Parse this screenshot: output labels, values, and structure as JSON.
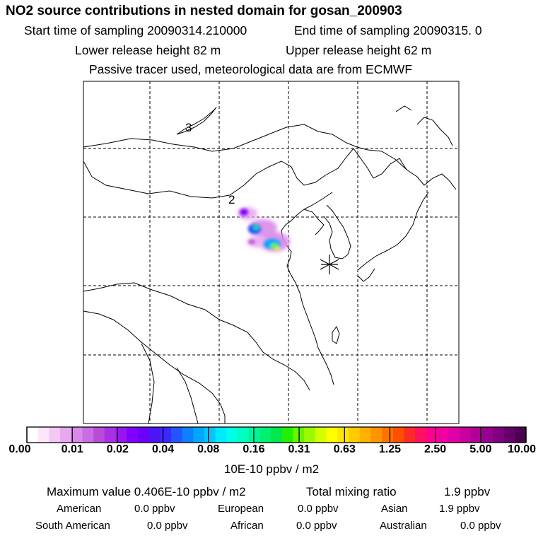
{
  "header": {
    "title": "NO2 source contributions in nested domain for gosan_200903",
    "start_label": "Start time of sampling 20090314.210000",
    "end_label": "End time of sampling 20090315.     0",
    "lower_label": "Lower release height   82 m",
    "upper_label": "Upper release height   62 m",
    "note": "Passive tracer used, meteorological data are from ECMWF"
  },
  "map": {
    "region_labels": [
      "3",
      "2"
    ],
    "receptor_marker": "asterisk"
  },
  "colorbar": {
    "labels": [
      "0.00",
      "0.01",
      "0.02",
      "0.04",
      "0.08",
      "0.16",
      "0.31",
      "0.63",
      "1.25",
      "2.50",
      "5.00",
      "10.00"
    ],
    "unit": "10E-10 ppbv / m2",
    "colors": [
      "#ffffff",
      "#fbe6fb",
      "#f2c8f4",
      "#e8a8ef",
      "#d98ae8",
      "#c86ee0",
      "#b84cd8",
      "#a92ee6",
      "#9815f0",
      "#8000ff",
      "#6a00f8",
      "#4e14f2",
      "#3a28ff",
      "#2255ff",
      "#0c80ff",
      "#00a6ff",
      "#00c8ff",
      "#00eaff",
      "#00ffe6",
      "#00ffc0",
      "#00f598",
      "#00f070",
      "#00e84c",
      "#22f000",
      "#66f500",
      "#9cfa00",
      "#d4ff00",
      "#ffff00",
      "#ffe600",
      "#ffcc00",
      "#ffb000",
      "#ff9400",
      "#ff7400",
      "#ff5000",
      "#ff2a2a",
      "#ff1060",
      "#ff0090",
      "#f000a0",
      "#e000a8",
      "#c800a0",
      "#b00098",
      "#980090",
      "#800080",
      "#660068",
      "#4c0050"
    ]
  },
  "stats": {
    "max_label": "Maximum value  0.406E-10 ppbv / m2",
    "total_label": "Total mixing ratio",
    "total_value": "1.9 ppbv",
    "regions_row1": [
      {
        "name": "American",
        "value": "0.0 ppbv"
      },
      {
        "name": "European",
        "value": "0.0 ppbv"
      },
      {
        "name": "Asian",
        "value": "1.9 ppbv"
      }
    ],
    "regions_row2": [
      {
        "name": "South American",
        "value": "0.0 ppbv"
      },
      {
        "name": "African",
        "value": "0.0 ppbv"
      },
      {
        "name": "Australian",
        "value": "0.0 ppbv"
      }
    ]
  }
}
